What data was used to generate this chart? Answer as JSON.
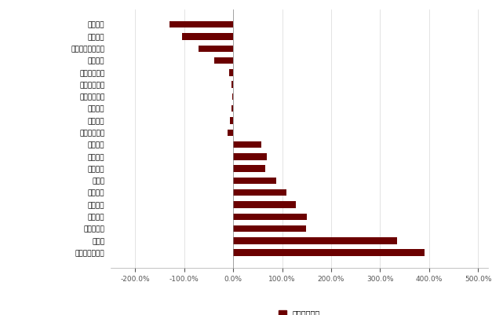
{
  "categories": [
    "农业机械",
    "磨具磨料",
    "冶金矿采化工设备",
    "煤炭机械",
    "纺织服装设备",
    "印刷包装机械",
    "其他通用机械",
    "轨交设备",
    "仪器仪表",
    "制冷空调设备",
    "环保设备",
    "工程机械",
    "楼宇设备",
    "自动化",
    "机床工具",
    "重型机械",
    "船舶制造",
    "机械基础件",
    "内燃机",
    "金属制品类机械"
  ],
  "values": [
    -130,
    -105,
    -70,
    -38,
    -8,
    -3,
    -2,
    -3,
    -7,
    -12,
    58,
    68,
    65,
    88,
    108,
    128,
    150,
    148,
    335,
    390
  ],
  "bar_color": "#6B0000",
  "xlim": [
    -250,
    520
  ],
  "xtick_labels": [
    "-200.0%",
    "-100.0%",
    "0.0%",
    "100.0%",
    "200.0%",
    "300.0%",
    "400.0%",
    "500.0%"
  ],
  "xtick_values": [
    -200,
    -100,
    0,
    100,
    200,
    300,
    400,
    500
  ],
  "legend_label": "利润同比增速",
  "background_color": "#ffffff",
  "grid_color": "#d8d8d8"
}
